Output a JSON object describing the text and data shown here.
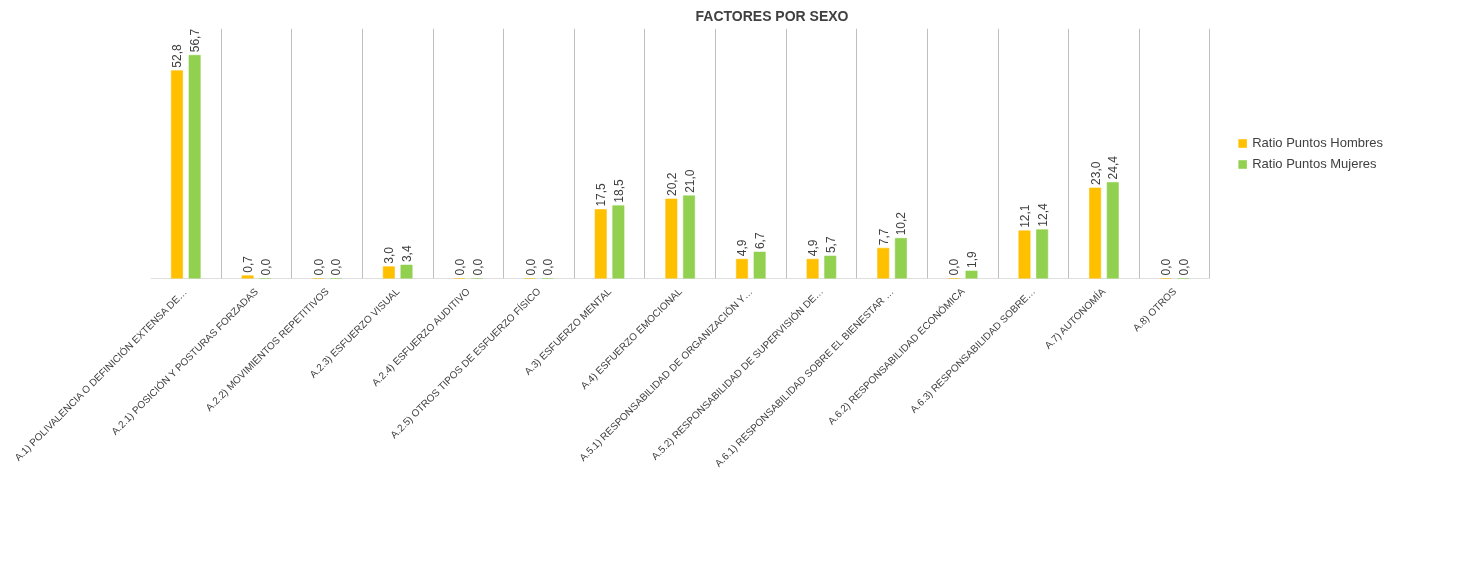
{
  "chart_data": {
    "type": "bar",
    "title": "FACTORES POR SEXO",
    "categories": [
      "A.1) POLIVALENCIA O DEFINICIÓN EXTENSA DE…",
      "A.2.1) POSICIÓN Y POSTURAS FORZADAS",
      "A.2.2) MOVIMIENTOS REPETITIVOS",
      "A.2.3) ESFUERZO VISUAL",
      "A.2.4) ESFUERZO AUDITIVO",
      "A.2.5) OTROS TIPOS DE ESFUERZO FÍSICO",
      "A.3) ESFUERZO MENTAL",
      "A.4) ESFUERZO EMOCIONAL",
      "A.5.1) RESPONSABILIDAD DE ORGANIZACIÓN Y…",
      "A.5.2) RESPONSABILIDAD DE SUPERVISIÓN DE…",
      "A.6.1) RESPONSABILIDAD SOBRE EL BIENESTAR …",
      "A.6.2) RESPONSABILIDAD ECONÓMICA",
      "A.6.3) RESPONSABILIDAD SOBRE…",
      "A.7) AUTONOMÍA",
      "A.8) OTROS"
    ],
    "series": [
      {
        "name": "Ratio Puntos Hombres",
        "color": "#ffc000",
        "values": [
          52.8,
          0.7,
          0.0,
          3.0,
          0.0,
          0.0,
          17.5,
          20.2,
          4.9,
          4.9,
          7.7,
          0.0,
          12.1,
          23.0,
          0.0
        ],
        "value_labels": [
          "52,8",
          "0,7",
          "0,0",
          "3,0",
          "0,0",
          "0,0",
          "17,5",
          "20,2",
          "4,9",
          "4,9",
          "7,7",
          "0,0",
          "12,1",
          "23,0",
          "0,0"
        ]
      },
      {
        "name": "Ratio Puntos Mujeres",
        "color": "#92d050",
        "values": [
          56.7,
          0.0,
          0.0,
          3.4,
          0.0,
          0.0,
          18.5,
          21.0,
          6.7,
          5.7,
          10.2,
          1.9,
          12.4,
          24.4,
          0.0
        ],
        "value_labels": [
          "56,7",
          "0,0",
          "0,0",
          "3,4",
          "0,0",
          "0,0",
          "18,5",
          "21,0",
          "6,7",
          "5,7",
          "10,2",
          "1,9",
          "12,4",
          "24,4",
          "0,0"
        ]
      }
    ],
    "grid": "x",
    "legend": "right",
    "tick_labels": "x"
  }
}
